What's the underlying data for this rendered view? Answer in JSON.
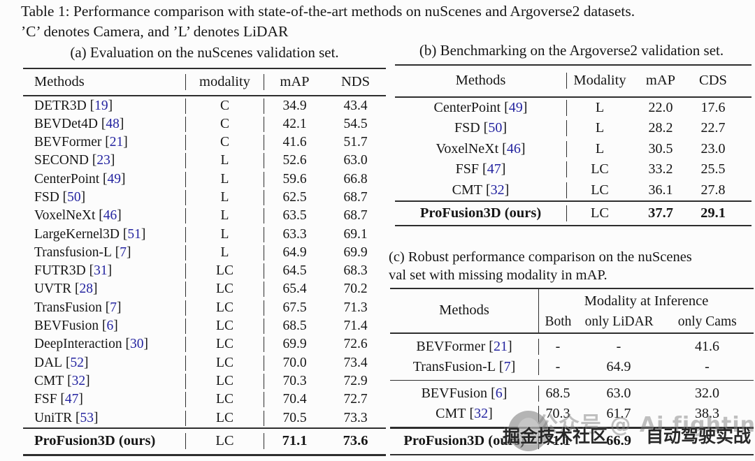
{
  "title": {
    "line1": "Table 1: Performance comparison with state-of-the-art methods on nuScenes and Argoverse2 datasets.",
    "line2": "’C’ denotes Camera, and ’L’ denotes LiDAR"
  },
  "colors": {
    "citation_blue": "#2424a0",
    "text": "#161616",
    "rule": "#2e2e2e",
    "watermark_gray": "#7d7d7d",
    "watermark_dark": "#1c1c1c",
    "background": "#fcfcfc"
  },
  "table_a": {
    "caption": "(a) Evaluation on the nuScenes validation set.",
    "headers": [
      "Methods",
      "modality",
      "mAP",
      "NDS"
    ],
    "rows": [
      {
        "m": "DETR3D",
        "c": "19",
        "v": [
          "C",
          "34.9",
          "43.4"
        ]
      },
      {
        "m": "BEVDet4D",
        "c": "48",
        "v": [
          "C",
          "42.1",
          "54.5"
        ]
      },
      {
        "m": "BEVFormer",
        "c": "21",
        "v": [
          "C",
          "41.6",
          "51.7"
        ]
      },
      {
        "m": "SECOND",
        "c": "23",
        "v": [
          "L",
          "52.6",
          "63.0"
        ]
      },
      {
        "m": "CenterPoint",
        "c": "49",
        "v": [
          "L",
          "59.6",
          "66.8"
        ]
      },
      {
        "m": "FSD",
        "c": "50",
        "v": [
          "L",
          "62.5",
          "68.7"
        ]
      },
      {
        "m": "VoxelNeXt",
        "c": "46",
        "v": [
          "L",
          "63.5",
          "68.7"
        ]
      },
      {
        "m": "LargeKernel3D",
        "c": "51",
        "v": [
          "L",
          "63.3",
          "69.1"
        ]
      },
      {
        "m": "Transfusion-L",
        "c": "7",
        "v": [
          "L",
          "64.9",
          "69.9"
        ]
      },
      {
        "m": "FUTR3D",
        "c": "31",
        "v": [
          "LC",
          "64.5",
          "68.3"
        ]
      },
      {
        "m": "UVTR",
        "c": "28",
        "v": [
          "LC",
          "65.4",
          "70.2"
        ]
      },
      {
        "m": "TransFusion",
        "c": "7",
        "v": [
          "LC",
          "67.5",
          "71.3"
        ]
      },
      {
        "m": "BEVFusion",
        "c": "6",
        "v": [
          "LC",
          "68.5",
          "71.4"
        ]
      },
      {
        "m": "DeepInteraction",
        "c": "30",
        "v": [
          "LC",
          "69.9",
          "72.6"
        ]
      },
      {
        "m": "DAL",
        "c": "52",
        "v": [
          "LC",
          "70.0",
          "73.4"
        ]
      },
      {
        "m": "CMT",
        "c": "32",
        "v": [
          "LC",
          "70.3",
          "72.9"
        ]
      },
      {
        "m": "FSF",
        "c": "47",
        "v": [
          "LC",
          "70.4",
          "72.7"
        ]
      },
      {
        "m": "UniTR",
        "c": "53",
        "v": [
          "LC",
          "70.5",
          "73.3"
        ]
      }
    ],
    "ours": {
      "m": "ProFusion3D (ours)",
      "c": "",
      "v": [
        "LC",
        "71.1",
        "73.6"
      ]
    }
  },
  "table_b": {
    "caption": "(b) Benchmarking on the Argoverse2 validation set.",
    "headers": [
      "Methods",
      "Modality",
      "mAP",
      "CDS"
    ],
    "rows": [
      {
        "m": "CenterPoint",
        "c": "49",
        "v": [
          "L",
          "22.0",
          "17.6"
        ]
      },
      {
        "m": "FSD",
        "c": "50",
        "v": [
          "L",
          "28.2",
          "22.7"
        ]
      },
      {
        "m": "VoxelNeXt",
        "c": "46",
        "v": [
          "L",
          "30.5",
          "23.0"
        ]
      },
      {
        "m": "FSF",
        "c": "47",
        "v": [
          "LC",
          "33.2",
          "25.5"
        ]
      },
      {
        "m": "CMT",
        "c": "32",
        "v": [
          "LC",
          "36.1",
          "27.8"
        ]
      }
    ],
    "ours": {
      "m": "ProFusion3D (ours)",
      "c": "",
      "v": [
        "LC",
        "37.7",
        "29.1"
      ]
    }
  },
  "table_c": {
    "caption_line1": "(c) Robust performance comparison on the nuScenes",
    "caption_line2": "val set with missing modality in mAP.",
    "headers": {
      "methods": "Methods",
      "group": "Modality at Inference",
      "cols": [
        "Both",
        "only LiDAR",
        "only Cams"
      ]
    },
    "rows_group1": [
      {
        "m": "BEVFormer",
        "c": "21",
        "v": [
          "-",
          "-",
          "41.6"
        ]
      },
      {
        "m": "TransFusion-L",
        "c": "7",
        "v": [
          "-",
          "64.9",
          "-"
        ]
      }
    ],
    "rows_group2": [
      {
        "m": "BEVFusion",
        "c": "6",
        "v": [
          "68.5",
          "63.0",
          "32.0"
        ]
      },
      {
        "m": "CMT",
        "c": "32",
        "v": [
          "70.3",
          "61.7",
          "38.3"
        ]
      }
    ],
    "ours": {
      "m": "ProFusion3D (ours)",
      "c": "",
      "v": [
        "71.1",
        "66.9",
        ""
      ]
    }
  },
  "watermark": {
    "gray_text": "公众号 @ Ai fighting",
    "dark_text_left": "掘金技术社区",
    "dark_text_right": "自动驾驶实战"
  }
}
